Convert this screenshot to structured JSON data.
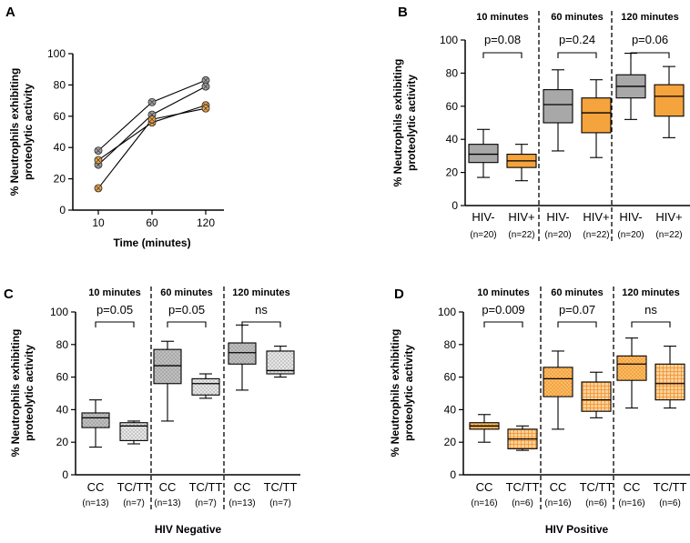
{
  "chart_data": [
    {
      "panel": "A",
      "type": "line",
      "ylabel": "% Neutrophils exhibiting proteolytic activity",
      "xlabel": "Time (minutes)",
      "x": [
        "10",
        "60",
        "120"
      ],
      "ylim": [
        0,
        100
      ],
      "yticks": [
        0,
        20,
        40,
        60,
        80,
        100
      ],
      "series": [
        {
          "name": "gray-1",
          "color": "#a0a0a0",
          "values": [
            38,
            69,
            83
          ]
        },
        {
          "name": "gray-2",
          "color": "#a0a0a0",
          "values": [
            29,
            61,
            79
          ]
        },
        {
          "name": "orange-1",
          "color": "#f5a33c",
          "values": [
            32,
            56,
            67
          ]
        },
        {
          "name": "orange-2",
          "color": "#f5a33c",
          "values": [
            14,
            58,
            65
          ]
        }
      ]
    },
    {
      "panel": "B",
      "type": "box",
      "ylabel": "% Neutrophils exhibiting proteolytic activity",
      "ylim": [
        0,
        100
      ],
      "yticks": [
        0,
        20,
        40,
        60,
        80,
        100
      ],
      "bottom_label": "",
      "groups": [
        {
          "title": "10 minutes",
          "pvalue": "p=0.08"
        },
        {
          "title": "60 minutes",
          "pvalue": "p=0.24"
        },
        {
          "title": "120 minutes",
          "pvalue": "p=0.06"
        }
      ],
      "boxes": [
        {
          "label": "HIV-",
          "n": "(n=20)",
          "min": 17,
          "q1": 26,
          "median": 31,
          "q3": 37,
          "max": 46,
          "fill": "gray"
        },
        {
          "label": "HIV+",
          "n": "(n=22)",
          "min": 15,
          "q1": 23,
          "median": 27,
          "q3": 31,
          "max": 37,
          "fill": "orange"
        },
        {
          "label": "HIV-",
          "n": "(n=20)",
          "min": 33,
          "q1": 50,
          "median": 61,
          "q3": 70,
          "max": 82,
          "fill": "gray"
        },
        {
          "label": "HIV+",
          "n": "(n=22)",
          "min": 29,
          "q1": 44,
          "median": 56,
          "q3": 65,
          "max": 76,
          "fill": "orange"
        },
        {
          "label": "HIV-",
          "n": "(n=20)",
          "min": 52,
          "q1": 65,
          "median": 72,
          "q3": 79,
          "max": 92,
          "fill": "gray"
        },
        {
          "label": "HIV+",
          "n": "(n=22)",
          "min": 41,
          "q1": 54,
          "median": 66,
          "q3": 73,
          "max": 84,
          "fill": "orange"
        }
      ]
    },
    {
      "panel": "C",
      "type": "box",
      "ylabel": "% Neutrophils exhibiting proteolytic activity",
      "ylim": [
        0,
        100
      ],
      "yticks": [
        0,
        20,
        40,
        60,
        80,
        100
      ],
      "bottom_label": "HIV Negative",
      "groups": [
        {
          "title": "10 minutes",
          "pvalue": "p=0.05"
        },
        {
          "title": "60 minutes",
          "pvalue": "p=0.05"
        },
        {
          "title": "120 minutes",
          "pvalue": "ns"
        }
      ],
      "boxes": [
        {
          "label": "CC",
          "n": "(n=13)",
          "min": 17,
          "q1": 29,
          "median": 35,
          "q3": 38,
          "max": 46,
          "fill": "gray-dots"
        },
        {
          "label": "TC/TT",
          "n": "(n=7)",
          "min": 19,
          "q1": 21,
          "median": 30,
          "q3": 32,
          "max": 33,
          "fill": "light-dots"
        },
        {
          "label": "CC",
          "n": "(n=13)",
          "min": 33,
          "q1": 56,
          "median": 67,
          "q3": 77,
          "max": 82,
          "fill": "gray-dots"
        },
        {
          "label": "TC/TT",
          "n": "(n=7)",
          "min": 47,
          "q1": 49,
          "median": 56,
          "q3": 59,
          "max": 62,
          "fill": "light-dots"
        },
        {
          "label": "CC",
          "n": "(n=13)",
          "min": 52,
          "q1": 68,
          "median": 75,
          "q3": 81,
          "max": 92,
          "fill": "gray-dots"
        },
        {
          "label": "TC/TT",
          "n": "(n=7)",
          "min": 60,
          "q1": 62,
          "median": 64,
          "q3": 76,
          "max": 79,
          "fill": "light-dots"
        }
      ]
    },
    {
      "panel": "D",
      "type": "box",
      "ylabel": "% Neutrophils exhibiting proteolytic activity",
      "ylim": [
        0,
        100
      ],
      "yticks": [
        0,
        20,
        40,
        60,
        80,
        100
      ],
      "bottom_label": "HIV Positive",
      "groups": [
        {
          "title": "10 minutes",
          "pvalue": "p=0.009"
        },
        {
          "title": "60 minutes",
          "pvalue": "p=0.07"
        },
        {
          "title": "120 minutes",
          "pvalue": "ns"
        }
      ],
      "boxes": [
        {
          "label": "CC",
          "n": "(n=16)",
          "min": 20,
          "q1": 28,
          "median": 30,
          "q3": 32,
          "max": 37,
          "fill": "orange-dots"
        },
        {
          "label": "TC/TT",
          "n": "(n=6)",
          "min": 15,
          "q1": 16,
          "median": 22,
          "q3": 28,
          "max": 30,
          "fill": "orange-grid"
        },
        {
          "label": "CC",
          "n": "(n=16)",
          "min": 28,
          "q1": 48,
          "median": 59,
          "q3": 66,
          "max": 76,
          "fill": "orange-dots"
        },
        {
          "label": "TC/TT",
          "n": "(n=6)",
          "min": 35,
          "q1": 39,
          "median": 46,
          "q3": 57,
          "max": 63,
          "fill": "orange-grid"
        },
        {
          "label": "CC",
          "n": "(n=16)",
          "min": 41,
          "q1": 58,
          "median": 68,
          "q3": 73,
          "max": 84,
          "fill": "orange-dots"
        },
        {
          "label": "TC/TT",
          "n": "(n=6)",
          "min": 41,
          "q1": 46,
          "median": 56,
          "q3": 68,
          "max": 79,
          "fill": "orange-grid"
        }
      ]
    }
  ]
}
